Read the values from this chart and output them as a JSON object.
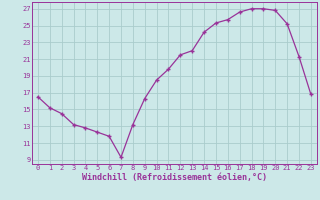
{
  "x": [
    0,
    1,
    2,
    3,
    4,
    5,
    6,
    7,
    8,
    9,
    10,
    11,
    12,
    13,
    14,
    15,
    16,
    17,
    18,
    19,
    20,
    21,
    22,
    23
  ],
  "y": [
    16.5,
    15.2,
    14.5,
    13.2,
    12.8,
    12.3,
    11.8,
    9.3,
    13.2,
    16.3,
    18.5,
    19.8,
    21.5,
    22.0,
    24.2,
    25.3,
    25.7,
    26.6,
    27.0,
    27.0,
    26.8,
    25.2,
    21.3,
    16.8
  ],
  "line_color": "#993399",
  "marker": "+",
  "background_color": "#cce8e8",
  "grid_color": "#aacccc",
  "xlabel": "Windchill (Refroidissement éolien,°C)",
  "xlabel_fontsize": 6.0,
  "tick_fontsize": 5.0,
  "tick_color": "#993399",
  "label_color": "#993399",
  "xlim": [
    -0.5,
    23.5
  ],
  "ylim": [
    8.5,
    27.8
  ],
  "yticks": [
    9,
    11,
    13,
    15,
    17,
    19,
    21,
    23,
    25,
    27
  ],
  "xticks": [
    0,
    1,
    2,
    3,
    4,
    5,
    6,
    7,
    8,
    9,
    10,
    11,
    12,
    13,
    14,
    15,
    16,
    17,
    18,
    19,
    20,
    21,
    22,
    23
  ]
}
